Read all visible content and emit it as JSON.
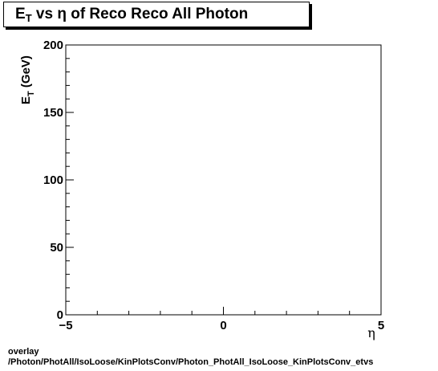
{
  "chart_data": {
    "type": "scatter",
    "title_main": "E",
    "title_sub": "T",
    "title_rest": " vs  η of Reco Reco All Photon",
    "ylabel_main": "E",
    "ylabel_sub": "T",
    "ylabel_rest": " (GeV)",
    "xlabel": "η",
    "xlim": [
      -5,
      5
    ],
    "ylim": [
      0,
      200
    ],
    "x_major_ticks": [
      -5,
      0,
      5
    ],
    "y_major_ticks": [
      0,
      50,
      100,
      150,
      200
    ],
    "x_tick_labels": [
      "−5",
      "0",
      "5"
    ],
    "y_tick_labels": [
      "0",
      "50",
      "100",
      "150",
      "200"
    ],
    "x": [],
    "y": [],
    "grid": false
  },
  "footer": {
    "line1": "overlay",
    "line2": "/Photon/PhotAll/IsoLoose/KinPlotsConv/Photon_PhotAll_IsoLoose_KinPlotsConv_etvs"
  }
}
